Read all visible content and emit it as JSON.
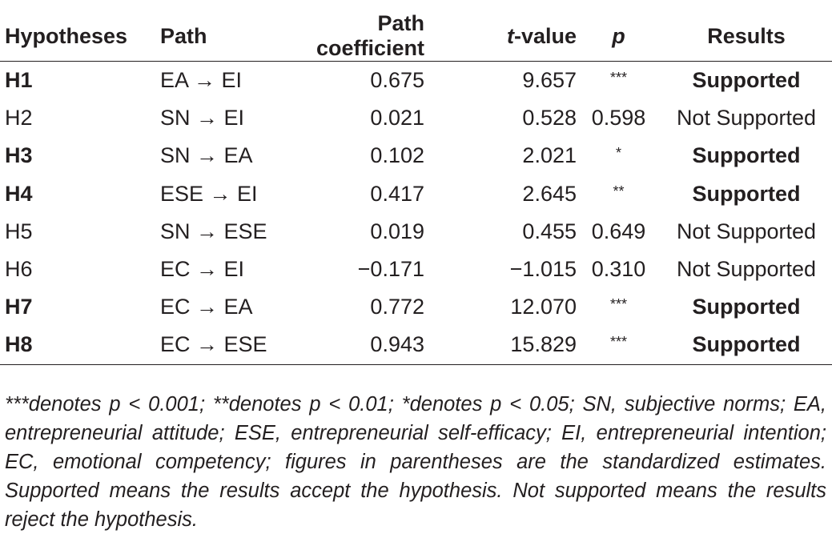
{
  "table": {
    "headers": {
      "hypotheses": "Hypotheses",
      "path": "Path",
      "coefficient": "Path coefficient",
      "t_italic": "t",
      "t_rest": "-value",
      "p": "p",
      "results": "Results"
    },
    "rows": [
      {
        "hyp": "H1",
        "path": "EA → EI",
        "coef": "0.675",
        "t": "9.657",
        "p": "***",
        "result": "Supported",
        "bold": true
      },
      {
        "hyp": "H2",
        "path": "SN → EI",
        "coef": "0.021",
        "t": "0.528",
        "p": "0.598",
        "result": "Not Supported",
        "bold": false
      },
      {
        "hyp": "H3",
        "path": "SN → EA",
        "coef": "0.102",
        "t": "2.021",
        "p": "*",
        "result": "Supported",
        "bold": true
      },
      {
        "hyp": "H4",
        "path": "ESE → EI",
        "coef": "0.417",
        "t": "2.645",
        "p": "**",
        "result": "Supported",
        "bold": true
      },
      {
        "hyp": "H5",
        "path": "SN → ESE",
        "coef": "0.019",
        "t": "0.455",
        "p": "0.649",
        "result": "Not Supported",
        "bold": false
      },
      {
        "hyp": "H6",
        "path": "EC → EI",
        "coef": "−0.171",
        "t": "−1.015",
        "p": "0.310",
        "result": "Not Supported",
        "bold": false
      },
      {
        "hyp": "H7",
        "path": "EC → EA",
        "coef": "0.772",
        "t": "12.070",
        "p": "***",
        "result": "Supported",
        "bold": true
      },
      {
        "hyp": "H8",
        "path": "EC → ESE",
        "coef": "0.943",
        "t": "15.829",
        "p": "***",
        "result": "Supported",
        "bold": true
      }
    ]
  },
  "footnote": "***denotes p < 0.001; **denotes p < 0.01; *denotes p < 0.05; SN, subjective norms; EA, entrepreneurial attitude; ESE, entrepreneurial self-efficacy; EI, entrepreneurial intention; EC, emotional competency; figures in parentheses are the standardized estimates. Supported means the results accept the hypothesis. Not supported means the results reject the hypothesis."
}
